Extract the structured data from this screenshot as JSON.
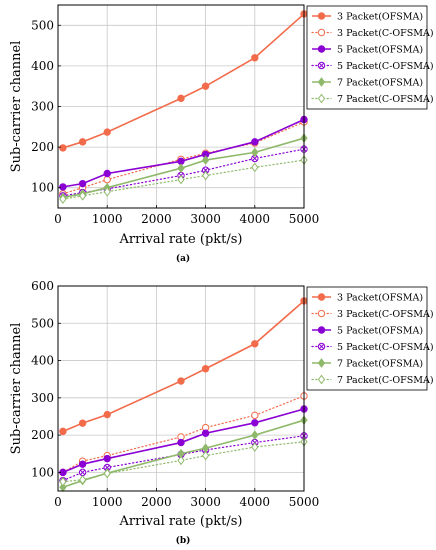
{
  "chart_data": [
    {
      "type": "line",
      "panel_label": "(a)",
      "xlabel": "Arrival rate (pkt/s)",
      "ylabel": "Sub-carrier channel",
      "xlim": [
        0,
        5000
      ],
      "ylim": [
        50,
        550
      ],
      "xticks": [
        0,
        1000,
        2000,
        3000,
        4000,
        5000
      ],
      "yticks": [
        100,
        200,
        300,
        400,
        500
      ],
      "grid": true,
      "legend_position": "top-right",
      "x": [
        100,
        500,
        1000,
        2500,
        3000,
        4000,
        5000
      ],
      "series": [
        {
          "name": "3 Packet(OFSMA)",
          "color": "#f26b4b",
          "style": "solid",
          "marker": "filled-circle",
          "values": [
            198,
            213,
            237,
            320,
            350,
            420,
            528
          ]
        },
        {
          "name": "3 Packet(C-OFSMA)",
          "color": "#f26b4b",
          "style": "dotted",
          "marker": "open-circle",
          "values": [
            85,
            100,
            120,
            170,
            185,
            210,
            262
          ]
        },
        {
          "name": "5 Packet(OFSMA)",
          "color": "#8a00d4",
          "style": "solid",
          "marker": "filled-circle",
          "values": [
            102,
            110,
            135,
            165,
            182,
            213,
            268
          ]
        },
        {
          "name": "5 Packet(C-OFSMA)",
          "color": "#8a00d4",
          "style": "dotted",
          "marker": "x-circle",
          "values": [
            80,
            88,
            97,
            130,
            143,
            172,
            195
          ]
        },
        {
          "name": "7 Packet(OFSMA)",
          "color": "#8fb96a",
          "style": "solid",
          "marker": "filled-diamond",
          "values": [
            76,
            85,
            100,
            148,
            168,
            187,
            222
          ]
        },
        {
          "name": "7 Packet(C-OFSMA)",
          "color": "#8fb96a",
          "style": "dotted",
          "marker": "open-diamond",
          "values": [
            72,
            80,
            90,
            120,
            130,
            150,
            168
          ]
        }
      ]
    },
    {
      "type": "line",
      "panel_label": "(b)",
      "xlabel": "Arrival rate (pkt/s)",
      "ylabel": "Sub-carrier channel",
      "xlim": [
        0,
        5000
      ],
      "ylim": [
        50,
        600
      ],
      "xticks": [
        0,
        1000,
        2000,
        3000,
        4000,
        5000
      ],
      "yticks": [
        100,
        200,
        300,
        400,
        500,
        600
      ],
      "grid": true,
      "legend_position": "top-right",
      "x": [
        100,
        500,
        1000,
        2500,
        3000,
        4000,
        5000
      ],
      "series": [
        {
          "name": "3 Packet(OFSMA)",
          "color": "#f26b4b",
          "style": "solid",
          "marker": "filled-circle",
          "values": [
            210,
            232,
            255,
            345,
            378,
            445,
            560
          ]
        },
        {
          "name": "3 Packet(C-OFSMA)",
          "color": "#f26b4b",
          "style": "dotted",
          "marker": "open-circle",
          "values": [
            100,
            130,
            145,
            195,
            220,
            253,
            305
          ]
        },
        {
          "name": "5 Packet(OFSMA)",
          "color": "#8a00d4",
          "style": "solid",
          "marker": "filled-circle",
          "values": [
            100,
            122,
            137,
            180,
            205,
            233,
            270
          ]
        },
        {
          "name": "5 Packet(C-OFSMA)",
          "color": "#8a00d4",
          "style": "dotted",
          "marker": "x-circle",
          "values": [
            78,
            100,
            113,
            148,
            160,
            180,
            198
          ]
        },
        {
          "name": "7 Packet(OFSMA)",
          "color": "#8fb96a",
          "style": "solid",
          "marker": "filled-diamond",
          "values": [
            60,
            78,
            98,
            150,
            165,
            200,
            240
          ]
        },
        {
          "name": "7 Packet(C-OFSMA)",
          "color": "#8fb96a",
          "style": "dotted",
          "marker": "open-diamond",
          "values": [
            75,
            80,
            97,
            132,
            145,
            168,
            182
          ]
        }
      ]
    }
  ]
}
